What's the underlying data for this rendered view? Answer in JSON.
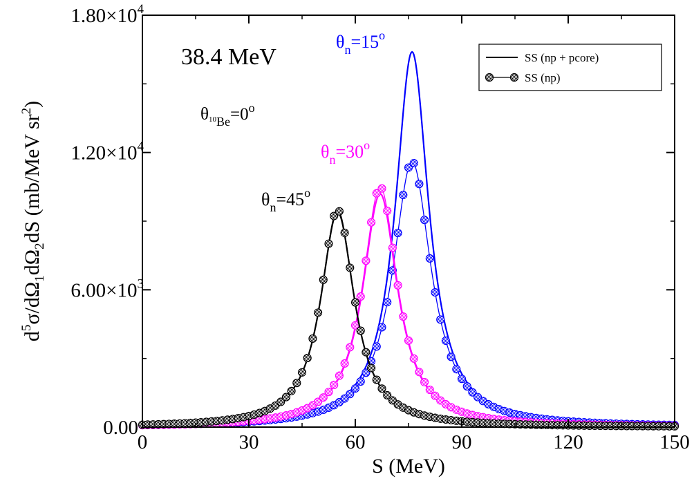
{
  "chart_data": {
    "type": "line",
    "xlabel": "S (MeV)",
    "ylabel": {
      "parts": [
        "d",
        "5",
        "σ/dΩ",
        "1",
        "dΩ",
        "2",
        "dS  (mb/MeV sr",
        "2",
        ")"
      ]
    },
    "xlim": [
      0,
      150
    ],
    "ylim": [
      0,
      18000
    ],
    "x_ticks": [
      "0",
      "30",
      "60",
      "90",
      "120",
      "150"
    ],
    "y_ticks": [
      {
        "value": 0,
        "label": "0.00"
      },
      {
        "value": 6000,
        "mantissa": "6.00×10",
        "exp": "3"
      },
      {
        "value": 12000,
        "mantissa": "1.20×10",
        "exp": "4"
      },
      {
        "value": 18000,
        "mantissa": "1.80×10",
        "exp": "4"
      }
    ],
    "grid": false,
    "legend_position": "top-right",
    "legend": [
      {
        "label": "SS (np + pcore)",
        "style": "solid line"
      },
      {
        "label": "SS (np)",
        "style": "line with circle markers"
      }
    ],
    "annotations": {
      "energy": "38.4 MeV",
      "theta_be": {
        "base": "θ",
        "sub_sup": "10",
        "sub": "Be",
        "rest": "=0",
        "sup": "o"
      },
      "theta_15": {
        "base": "θ",
        "sub": "n",
        "rest": "=15",
        "sup": "o",
        "color": "#0000ff"
      },
      "theta_30": {
        "base": "θ",
        "sub": "n",
        "rest": "=30",
        "sup": "o",
        "color": "#ff00ff"
      },
      "theta_45": {
        "base": "θ",
        "sub": "n",
        "rest": "=45",
        "sup": "o",
        "color": "#000000"
      }
    },
    "series": [
      {
        "angle": "15",
        "model": "SS (np + pcore)",
        "color": "#0000ff",
        "peak_x": 76,
        "peak_y": 16400,
        "width": 5.7,
        "markers": false,
        "stroke": 2.2
      },
      {
        "angle": "15",
        "model": "SS (np)",
        "color": "#0000ff",
        "peak_x": 76,
        "peak_y": 11600,
        "width": 6.6,
        "markers": true,
        "stroke": 1.3
      },
      {
        "angle": "30",
        "model": "SS (np + pcore)",
        "color": "#ff00ff",
        "peak_x": 67,
        "peak_y": 10200,
        "width": 6.0,
        "markers": false,
        "stroke": 2.2
      },
      {
        "angle": "30",
        "model": "SS (np)",
        "color": "#ff00ff",
        "peak_x": 67,
        "peak_y": 10500,
        "width": 6.0,
        "markers": true,
        "stroke": 1.3
      },
      {
        "angle": "45",
        "model": "SS (np + pcore)",
        "color": "#000000",
        "peak_x": 55,
        "peak_y": 9400,
        "width": 5.8,
        "markers": false,
        "stroke": 2.2
      },
      {
        "angle": "45",
        "model": "SS (np)",
        "color": "#000000",
        "peak_x": 55,
        "peak_y": 9500,
        "width": 5.8,
        "markers": true,
        "stroke": 1.3
      }
    ],
    "marker_step": 1.5
  }
}
